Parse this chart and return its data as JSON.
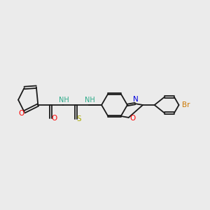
{
  "background_color": "#ebebeb",
  "figsize": [
    3.0,
    3.0
  ],
  "dpi": 100,
  "bond_color": "#1a1a1a",
  "bond_lw": 1.3,
  "colors": {
    "O": "#ff0000",
    "N": "#0000dd",
    "S": "#aaaa00",
    "NH": "#2aaa88",
    "Br": "#cc7700",
    "C": "#1a1a1a"
  }
}
